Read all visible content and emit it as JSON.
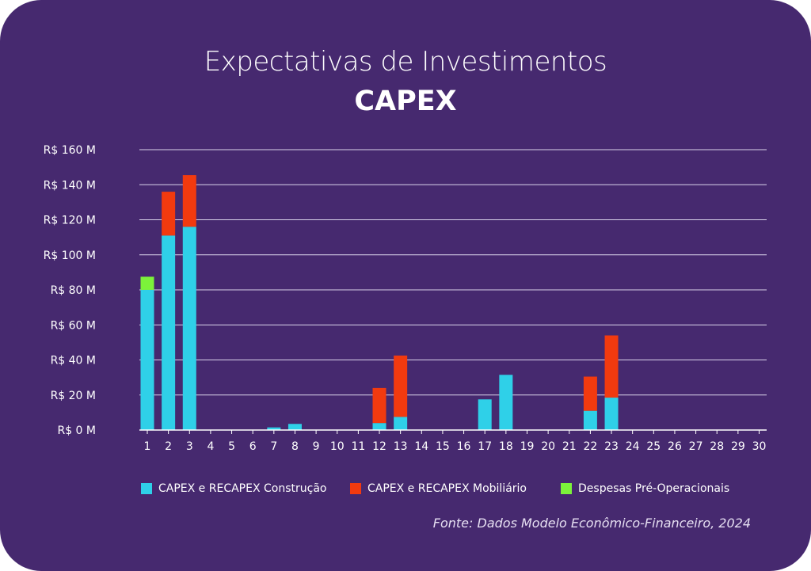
{
  "header": {
    "title": "Expectativas de Investimentos",
    "subtitle": "CAPEX"
  },
  "colors": {
    "background": "#46296f",
    "construcao": "#2fd0e8",
    "mobiliario": "#f23a0f",
    "preoperacionais": "#7cf23a",
    "grid": "#d9d2ea",
    "text": "#ffffff"
  },
  "chart_data": {
    "type": "bar",
    "stacked": true,
    "title": "Expectativas de Investimentos",
    "subtitle": "CAPEX",
    "categories": [
      "1",
      "2",
      "3",
      "4",
      "5",
      "6",
      "7",
      "8",
      "9",
      "10",
      "11",
      "12",
      "13",
      "14",
      "15",
      "16",
      "17",
      "18",
      "19",
      "20",
      "21",
      "22",
      "23",
      "24",
      "25",
      "26",
      "27",
      "28",
      "29",
      "30"
    ],
    "y_tick_labels": [
      "R$ 0 M",
      "R$ 20 M",
      "R$ 40 M",
      "R$ 60 M",
      "R$ 80 M",
      "R$ 100 M",
      "R$ 120 M",
      "R$ 140 M",
      "R$ 160 M"
    ],
    "ylim": [
      0,
      160
    ],
    "grid": true,
    "legend_position": "bottom",
    "series": [
      {
        "name": "CAPEX e RECAPEX Construção",
        "color": "#2fd0e8",
        "values": [
          80,
          111,
          116,
          0,
          0,
          0,
          1.5,
          3.5,
          0,
          0,
          0,
          4,
          7.5,
          0,
          0,
          0,
          17.5,
          31.5,
          0,
          0,
          0,
          11,
          18.5,
          0,
          0,
          0,
          0,
          0,
          0,
          0
        ]
      },
      {
        "name": "CAPEX e RECAPEX Mobiliário",
        "color": "#f23a0f",
        "values": [
          0,
          25,
          29.5,
          0,
          0,
          0,
          0,
          0,
          0,
          0,
          0,
          20,
          35,
          0,
          0,
          0,
          0,
          0,
          0,
          0,
          0,
          19.5,
          35.5,
          0,
          0,
          0,
          0,
          0,
          0,
          0
        ]
      },
      {
        "name": "Despesas Pré-Operacionais",
        "color": "#7cf23a",
        "values": [
          7.5,
          0,
          0,
          0,
          0,
          0,
          0,
          0,
          0,
          0,
          0,
          0,
          0,
          0,
          0,
          0,
          0,
          0,
          0,
          0,
          0,
          0,
          0,
          0,
          0,
          0,
          0,
          0,
          0,
          0
        ]
      }
    ]
  },
  "legend": {
    "items": [
      {
        "label": "CAPEX e RECAPEX Construção",
        "color": "#2fd0e8"
      },
      {
        "label": "CAPEX e RECAPEX Mobiliário",
        "color": "#f23a0f"
      },
      {
        "label": "Despesas Pré-Operacionais",
        "color": "#7cf23a"
      }
    ]
  },
  "footer": {
    "source": "Fonte: Dados Modelo Econômico-Financeiro, 2024"
  }
}
